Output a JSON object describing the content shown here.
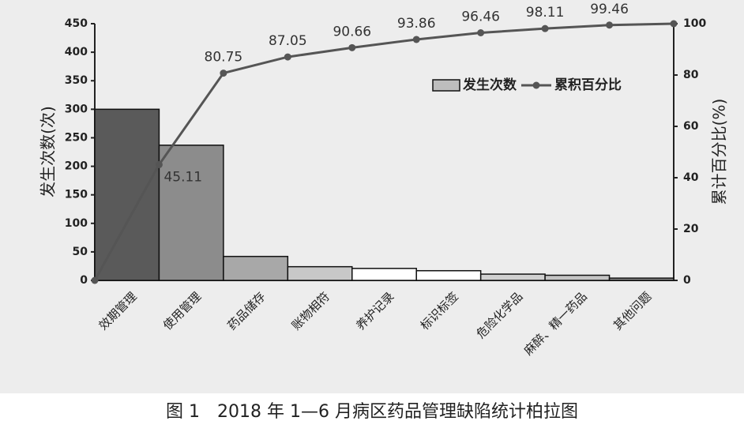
{
  "chart_data": {
    "type": "pareto",
    "title": "图 1　2018 年 1—6 月病区药品管理缺陷统计柏拉图",
    "ylabel": "发生次数(次)",
    "y2label": "累计百分比(%)",
    "categories": [
      "效期管理",
      "使用管理",
      "药品储存",
      "账物相符",
      "养护记录",
      "标识标签",
      "危险化学品",
      "麻醉、精一药品",
      "其他问题"
    ],
    "series": [
      {
        "name": "发生次数",
        "type": "bar",
        "colors": [
          "#5a5a5a",
          "#8c8c8c",
          "#a8a8a8",
          "#c8c8c8",
          "#ffffff",
          "#ffffff",
          "#d0d0d0",
          "#c4c4c4",
          "#8c8c8c"
        ],
        "values": [
          300,
          237,
          42,
          24,
          21,
          17,
          11,
          9,
          4
        ]
      },
      {
        "name": "累积百分比",
        "type": "line",
        "axis": "y2",
        "color": "#555555",
        "values": [
          45.11,
          80.75,
          87.05,
          90.66,
          93.86,
          96.46,
          98.11,
          99.46,
          100
        ],
        "value_labels": [
          "45.11",
          "80.75",
          "87.05",
          "90.66",
          "93.86",
          "96.46",
          "98.11",
          "99.46",
          null
        ]
      }
    ],
    "ylim": [
      0,
      450
    ],
    "yticks": [
      0,
      50,
      100,
      150,
      200,
      250,
      300,
      350,
      400,
      450
    ],
    "y2lim": [
      0,
      100
    ],
    "y2ticks": [
      0,
      20,
      40,
      60,
      80,
      100
    ]
  }
}
